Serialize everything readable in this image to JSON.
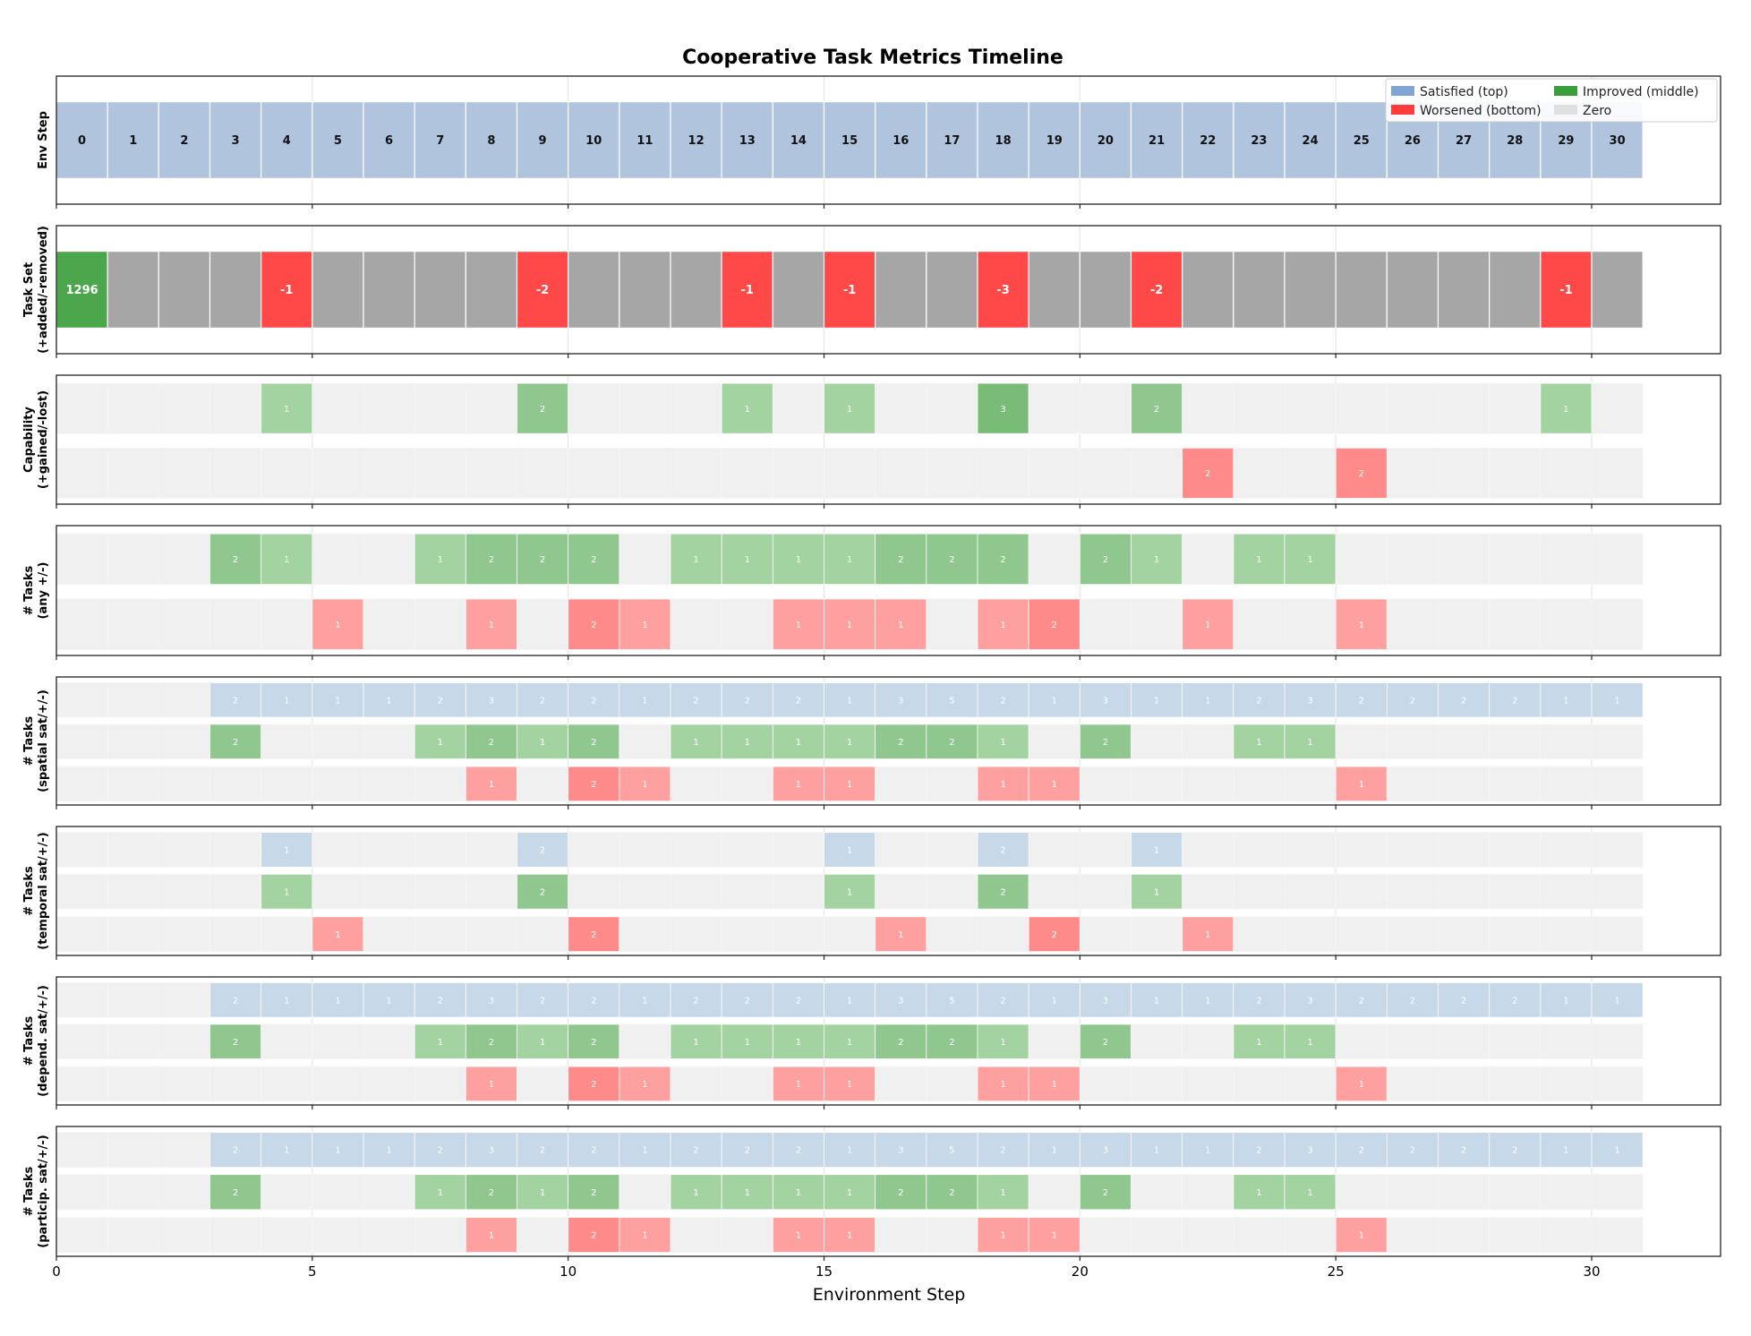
{
  "chart_data": {
    "type": "heatmap",
    "title": "Cooperative Task Metrics Timeline",
    "xlabel": "Environment Step",
    "xlim": [
      0,
      32.5
    ],
    "xticks": [
      0,
      5,
      10,
      15,
      20,
      25,
      30
    ],
    "steps": [
      0,
      1,
      2,
      3,
      4,
      5,
      6,
      7,
      8,
      9,
      10,
      11,
      12,
      13,
      14,
      15,
      16,
      17,
      18,
      19,
      20,
      21,
      22,
      23,
      24,
      25,
      26,
      27,
      28,
      29,
      30
    ],
    "legend": {
      "placement": "top-right",
      "items": [
        {
          "label": "Satisfied (top)",
          "color": "#7fa6d3"
        },
        {
          "label": "Improved (middle)",
          "color": "#3a9e3a"
        },
        {
          "label": "Worsened (bottom)",
          "color": "#ff3b3b"
        },
        {
          "label": "Zero",
          "color": "#e0e0e0"
        }
      ]
    },
    "panels": [
      {
        "ylabel": [
          "Env Step"
        ],
        "kind": "env",
        "rows": [
          {
            "name": "Env Step",
            "values": [
              0,
              1,
              2,
              3,
              4,
              5,
              6,
              7,
              8,
              9,
              10,
              11,
              12,
              13,
              14,
              15,
              16,
              17,
              18,
              19,
              20,
              21,
              22,
              23,
              24,
              25,
              26,
              27,
              28,
              29,
              30
            ]
          }
        ]
      },
      {
        "ylabel": [
          "Task Set",
          "(+added/-removed)"
        ],
        "kind": "taskset",
        "rows": [
          {
            "name": "Task Set",
            "values": [
              1296,
              0,
              0,
              0,
              -1,
              0,
              0,
              0,
              0,
              -2,
              0,
              0,
              0,
              -1,
              0,
              -1,
              0,
              0,
              -3,
              0,
              0,
              -2,
              0,
              0,
              0,
              0,
              0,
              0,
              0,
              -1,
              0
            ]
          }
        ]
      },
      {
        "ylabel": [
          "Capability",
          "(+gained/-lost)"
        ],
        "kind": "counts",
        "rows": [
          {
            "name": "Gained",
            "type": "improved",
            "values": [
              0,
              0,
              0,
              0,
              1,
              0,
              0,
              0,
              0,
              2,
              0,
              0,
              0,
              1,
              0,
              1,
              0,
              0,
              3,
              0,
              0,
              2,
              0,
              0,
              0,
              0,
              0,
              0,
              0,
              1,
              0
            ]
          },
          {
            "name": "Lost",
            "type": "worsened",
            "values": [
              0,
              0,
              0,
              0,
              0,
              0,
              0,
              0,
              0,
              0,
              0,
              0,
              0,
              0,
              0,
              0,
              0,
              0,
              0,
              0,
              0,
              0,
              2,
              0,
              0,
              2,
              0,
              0,
              0,
              0,
              0
            ]
          }
        ]
      },
      {
        "ylabel": [
          "# Tasks",
          "(any +/-)"
        ],
        "kind": "counts",
        "rows": [
          {
            "name": "Improved",
            "type": "improved",
            "values": [
              0,
              0,
              0,
              2,
              1,
              0,
              0,
              1,
              2,
              2,
              2,
              0,
              1,
              1,
              1,
              1,
              2,
              2,
              2,
              0,
              2,
              1,
              0,
              1,
              1,
              0,
              0,
              0,
              0,
              0,
              0
            ]
          },
          {
            "name": "Worsened",
            "type": "worsened",
            "values": [
              0,
              0,
              0,
              0,
              0,
              1,
              0,
              0,
              1,
              0,
              2,
              1,
              0,
              0,
              1,
              1,
              1,
              0,
              1,
              2,
              0,
              0,
              1,
              0,
              0,
              1,
              0,
              0,
              0,
              0,
              0
            ]
          }
        ]
      },
      {
        "ylabel": [
          "# Tasks",
          "(spatial sat/+/-)"
        ],
        "kind": "counts",
        "rows": [
          {
            "name": "Satisfied",
            "type": "satisfied",
            "values": [
              0,
              0,
              0,
              2,
              1,
              1,
              1,
              2,
              3,
              2,
              2,
              1,
              2,
              2,
              2,
              1,
              3,
              5,
              2,
              1,
              3,
              1,
              1,
              2,
              3,
              2,
              2,
              2,
              2,
              1,
              1
            ]
          },
          {
            "name": "Improved",
            "type": "improved",
            "values": [
              0,
              0,
              0,
              2,
              0,
              0,
              0,
              1,
              2,
              1,
              2,
              0,
              1,
              1,
              1,
              1,
              2,
              2,
              1,
              0,
              2,
              0,
              0,
              1,
              1,
              0,
              0,
              0,
              0,
              0,
              0
            ]
          },
          {
            "name": "Worsened",
            "type": "worsened",
            "values": [
              0,
              0,
              0,
              0,
              0,
              0,
              0,
              0,
              1,
              0,
              2,
              1,
              0,
              0,
              1,
              1,
              0,
              0,
              1,
              1,
              0,
              0,
              0,
              0,
              0,
              1,
              0,
              0,
              0,
              0,
              0
            ]
          }
        ]
      },
      {
        "ylabel": [
          "# Tasks",
          "(temporal sat/+/-)"
        ],
        "kind": "counts",
        "rows": [
          {
            "name": "Satisfied",
            "type": "satisfied",
            "values": [
              0,
              0,
              0,
              0,
              1,
              0,
              0,
              0,
              0,
              2,
              0,
              0,
              0,
              0,
              0,
              1,
              0,
              0,
              2,
              0,
              0,
              1,
              0,
              0,
              0,
              0,
              0,
              0,
              0,
              0,
              0
            ]
          },
          {
            "name": "Improved",
            "type": "improved",
            "values": [
              0,
              0,
              0,
              0,
              1,
              0,
              0,
              0,
              0,
              2,
              0,
              0,
              0,
              0,
              0,
              1,
              0,
              0,
              2,
              0,
              0,
              1,
              0,
              0,
              0,
              0,
              0,
              0,
              0,
              0,
              0
            ]
          },
          {
            "name": "Worsened",
            "type": "worsened",
            "values": [
              0,
              0,
              0,
              0,
              0,
              1,
              0,
              0,
              0,
              0,
              2,
              0,
              0,
              0,
              0,
              0,
              1,
              0,
              0,
              2,
              0,
              0,
              1,
              0,
              0,
              0,
              0,
              0,
              0,
              0,
              0
            ]
          }
        ]
      },
      {
        "ylabel": [
          "# Tasks",
          "(depend. sat/+/-)"
        ],
        "kind": "counts",
        "rows": [
          {
            "name": "Satisfied",
            "type": "satisfied",
            "values": [
              0,
              0,
              0,
              2,
              1,
              1,
              1,
              2,
              3,
              2,
              2,
              1,
              2,
              2,
              2,
              1,
              3,
              5,
              2,
              1,
              3,
              1,
              1,
              2,
              3,
              2,
              2,
              2,
              2,
              1,
              1
            ]
          },
          {
            "name": "Improved",
            "type": "improved",
            "values": [
              0,
              0,
              0,
              2,
              0,
              0,
              0,
              1,
              2,
              1,
              2,
              0,
              1,
              1,
              1,
              1,
              2,
              2,
              1,
              0,
              2,
              0,
              0,
              1,
              1,
              0,
              0,
              0,
              0,
              0,
              0
            ]
          },
          {
            "name": "Worsened",
            "type": "worsened",
            "values": [
              0,
              0,
              0,
              0,
              0,
              0,
              0,
              0,
              1,
              0,
              2,
              1,
              0,
              0,
              1,
              1,
              0,
              0,
              1,
              1,
              0,
              0,
              0,
              0,
              0,
              1,
              0,
              0,
              0,
              0,
              0
            ]
          }
        ]
      },
      {
        "ylabel": [
          "# Tasks",
          "(particip. sat/+/-)"
        ],
        "kind": "counts",
        "rows": [
          {
            "name": "Satisfied",
            "type": "satisfied",
            "values": [
              0,
              0,
              0,
              2,
              1,
              1,
              1,
              2,
              3,
              2,
              2,
              1,
              2,
              2,
              2,
              1,
              3,
              5,
              2,
              1,
              3,
              1,
              1,
              2,
              3,
              2,
              2,
              2,
              2,
              1,
              1
            ]
          },
          {
            "name": "Improved",
            "type": "improved",
            "values": [
              0,
              0,
              0,
              2,
              0,
              0,
              0,
              1,
              2,
              1,
              2,
              0,
              1,
              1,
              1,
              1,
              2,
              2,
              1,
              0,
              2,
              0,
              0,
              1,
              1,
              0,
              0,
              0,
              0,
              0,
              0
            ]
          },
          {
            "name": "Worsened",
            "type": "worsened",
            "values": [
              0,
              0,
              0,
              0,
              0,
              0,
              0,
              0,
              1,
              0,
              2,
              1,
              0,
              0,
              1,
              1,
              0,
              0,
              1,
              1,
              0,
              0,
              0,
              0,
              0,
              1,
              0,
              0,
              0,
              0,
              0
            ]
          }
        ]
      }
    ]
  }
}
